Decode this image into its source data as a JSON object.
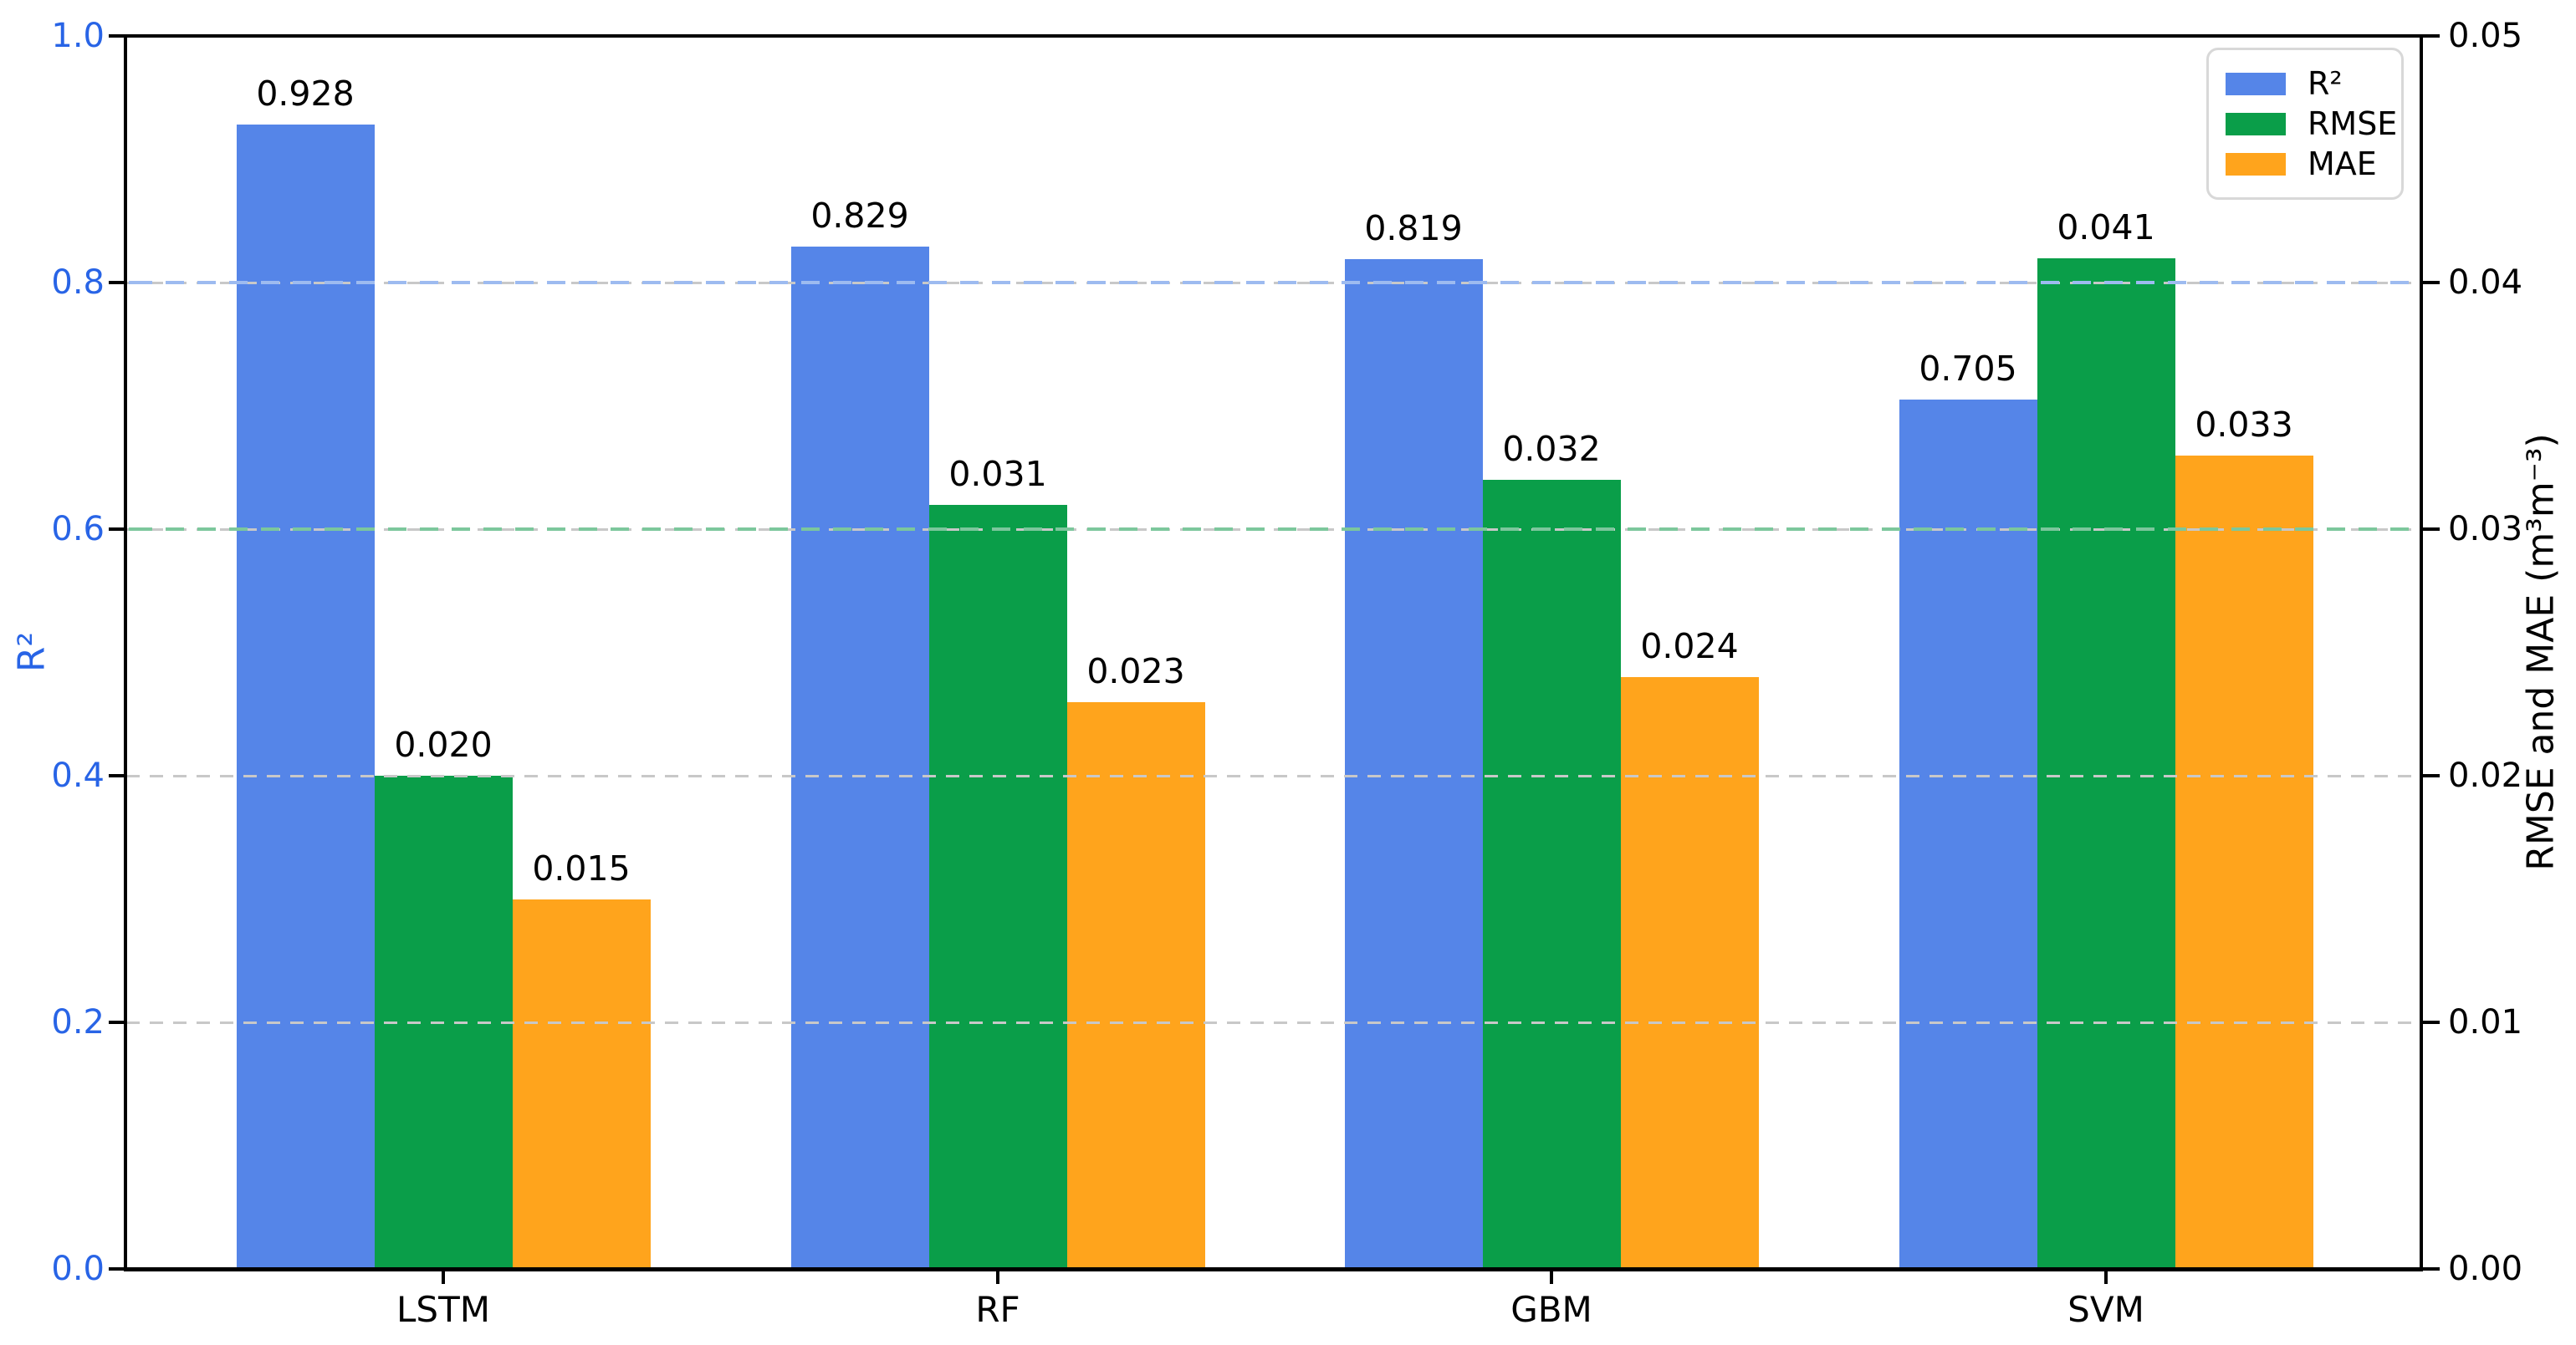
{
  "chart_data": {
    "type": "bar",
    "categories": [
      "LSTM",
      "RF",
      "GBM",
      "SVM"
    ],
    "series": [
      {
        "name": "R²",
        "axis": "left",
        "color": "#5585e8",
        "values": [
          0.928,
          0.829,
          0.819,
          0.705
        ],
        "labels": [
          "0.928",
          "0.829",
          "0.819",
          "0.705"
        ]
      },
      {
        "name": "RMSE",
        "axis": "right",
        "color": "#0a9e49",
        "values": [
          0.02,
          0.031,
          0.032,
          0.041
        ],
        "labels": [
          "0.020",
          "0.031",
          "0.032",
          "0.041"
        ]
      },
      {
        "name": "MAE",
        "axis": "right",
        "color": "#ffa41c",
        "values": [
          0.015,
          0.023,
          0.024,
          0.033
        ],
        "labels": [
          "0.015",
          "0.023",
          "0.024",
          "0.033"
        ]
      }
    ],
    "left_axis": {
      "label": "R²",
      "ticks": [
        "0.0",
        "0.2",
        "0.4",
        "0.6",
        "0.8",
        "1.0"
      ],
      "range": [
        0.0,
        1.0
      ],
      "tick_color": "#2864e6"
    },
    "right_axis": {
      "label": "RMSE and MAE (m³m⁻³)",
      "ticks": [
        "0.00",
        "0.01",
        "0.02",
        "0.03",
        "0.04",
        "0.05"
      ],
      "range": [
        0.0,
        0.05
      ],
      "tick_color": "#000000"
    },
    "gridlines": {
      "on": true,
      "style": "dashed",
      "color": "#c8c8c8",
      "y_left_positions": [
        0.2,
        0.4,
        0.6,
        0.8
      ]
    },
    "reference_lines": [
      {
        "y_left": 0.8,
        "color": "#9dbbf0",
        "meaning": "R² = 0.8"
      },
      {
        "y_left": 0.6,
        "color": "#7cc79c",
        "meaning": "RMSE = 0.03"
      }
    ],
    "legend": {
      "position": "top-right",
      "entries": [
        {
          "label": "R²",
          "color": "#5585e8"
        },
        {
          "label": "RMSE",
          "color": "#0a9e49"
        },
        {
          "label": "MAE",
          "color": "#ffa41c"
        }
      ]
    },
    "title": "",
    "xlabel": ""
  }
}
